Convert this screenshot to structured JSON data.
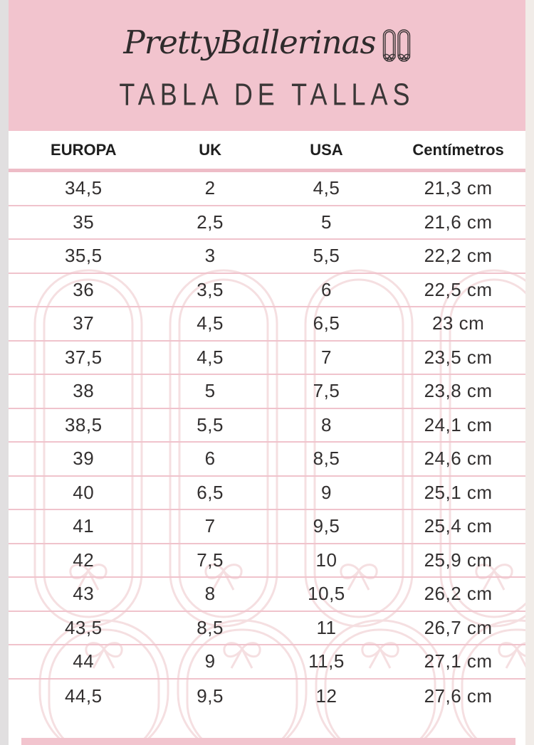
{
  "brand": {
    "logo_text": "PrettyBallerinas",
    "logo_icon": "ballet-flats-icon"
  },
  "title": "TABLA DE TALLAS",
  "table": {
    "columns": [
      "EUROPA",
      "UK",
      "USA",
      "Centímetros"
    ],
    "rows": [
      [
        "34,5",
        "2",
        "4,5",
        "21,3 cm"
      ],
      [
        "35",
        "2,5",
        "5",
        "21,6 cm"
      ],
      [
        "35,5",
        "3",
        "5,5",
        "22,2 cm"
      ],
      [
        "36",
        "3,5",
        "6",
        "22,5 cm"
      ],
      [
        "37",
        "4,5",
        "6,5",
        "23 cm"
      ],
      [
        "37,5",
        "4,5",
        "7",
        "23,5 cm"
      ],
      [
        "38",
        "5",
        "7,5",
        "23,8 cm"
      ],
      [
        "38,5",
        "5,5",
        "8",
        "24,1 cm"
      ],
      [
        "39",
        "6",
        "8,5",
        "24,6 cm"
      ],
      [
        "40",
        "6,5",
        "9",
        "25,1 cm"
      ],
      [
        "41",
        "7",
        "9,5",
        "25,4 cm"
      ],
      [
        "42",
        "7,5",
        "10",
        "25,9 cm"
      ],
      [
        "43",
        "8",
        "10,5",
        "26,2 cm"
      ],
      [
        "43,5",
        "8,5",
        "11",
        "26,7 cm"
      ],
      [
        "44",
        "9",
        "11,5",
        "27,1 cm"
      ],
      [
        "44,5",
        "9,5",
        "12",
        "27,6 cm"
      ]
    ]
  },
  "icons": {
    "logo": "ballet-flats-icon",
    "background": "ballet-shoes-outline-watermark"
  },
  "colors": {
    "header_pink": "#f2c4ce",
    "divider_pink": "#f0c3cc",
    "rule_pink": "#eebcc7",
    "watermark_pink": "#f5dfe1",
    "edge_left": "#e1dfe0",
    "edge_right": "#f1ece8",
    "text_dark": "#333030"
  }
}
